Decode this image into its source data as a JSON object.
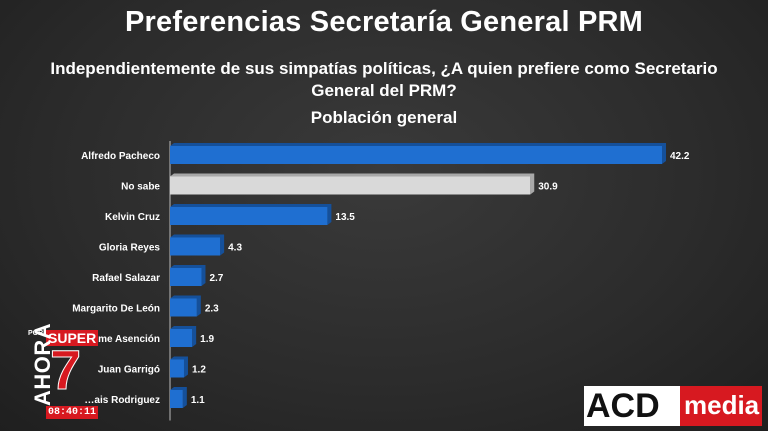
{
  "title": "Preferencias Secretaría General PRM",
  "question_line1": "Independientemente de sus simpatías políticas, ¿A quien prefiere como Secretario",
  "question_line2": "General del PRM?",
  "subtitle": "Población general",
  "chart_data": {
    "type": "bar",
    "orientation": "horizontal",
    "categories": [
      "Alfredo Pacheco",
      "No sabe",
      "Kelvin Cruz",
      "Gloria Reyes",
      "Rafael Salazar",
      "Margarito De León",
      "…me Asención",
      "Juan Garrigó",
      "…ais Rodriguez"
    ],
    "values": [
      42.2,
      30.9,
      13.5,
      4.3,
      2.7,
      2.3,
      1.9,
      1.2,
      1.1
    ],
    "colors": [
      "#1f6fd1",
      "#d9d9d9",
      "#1f6fd1",
      "#1f6fd1",
      "#1f6fd1",
      "#1f6fd1",
      "#1f6fd1",
      "#1f6fd1",
      "#1f6fd1"
    ],
    "xlim": [
      0,
      45
    ],
    "grid": false,
    "legend": false
  },
  "overlay": {
    "porla": "POR LA",
    "super": "SUPER",
    "seven": "7",
    "ahora": "AHORA",
    "time": "08:40:11"
  },
  "logo": {
    "acd": "ACD",
    "media": "media"
  }
}
